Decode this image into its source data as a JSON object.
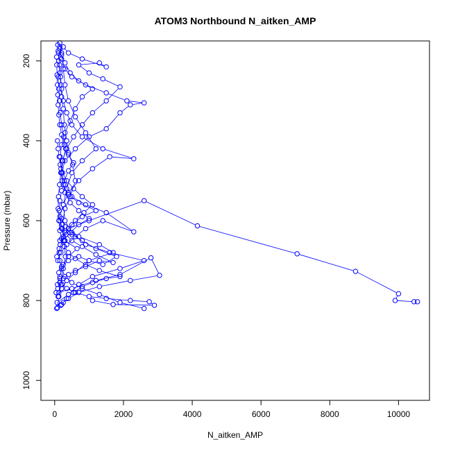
{
  "chart_data": {
    "type": "line",
    "title": "ATOM3 Northbound N_aitken_AMP",
    "xlabel": "N_aitken_AMP",
    "ylabel": "Pressure (mbar)",
    "xlim": [
      -400,
      10900
    ],
    "ylim": [
      1050,
      150
    ],
    "x_ticks": [
      0,
      2000,
      4000,
      6000,
      8000,
      10000
    ],
    "y_ticks": [
      200,
      400,
      600,
      800,
      1000
    ],
    "x_tick_labels": [
      "0",
      "2000",
      "4000",
      "6000",
      "8000",
      "10000"
    ],
    "y_tick_labels": [
      "200",
      "400",
      "600",
      "800",
      "1000"
    ],
    "color": "#0000ff",
    "series": [
      {
        "points": [
          [
            60,
            820
          ],
          [
            80,
            818
          ],
          [
            120,
            790
          ],
          [
            180,
            760
          ],
          [
            250,
            720
          ],
          [
            310,
            690
          ],
          [
            280,
            650
          ],
          [
            220,
            610
          ],
          [
            300,
            570
          ],
          [
            450,
            540
          ],
          [
            600,
            500
          ],
          [
            520,
            460
          ],
          [
            400,
            430
          ],
          [
            350,
            400
          ],
          [
            280,
            360
          ],
          [
            250,
            320
          ],
          [
            200,
            290
          ],
          [
            180,
            260
          ],
          [
            150,
            230
          ],
          [
            120,
            200
          ],
          [
            100,
            175
          ],
          [
            90,
            160
          ]
        ]
      },
      {
        "points": [
          [
            70,
            805
          ],
          [
            400,
            785
          ],
          [
            700,
            760
          ],
          [
            1100,
            740
          ],
          [
            1900,
            720
          ],
          [
            2600,
            700
          ],
          [
            1600,
            680
          ],
          [
            900,
            660
          ],
          [
            500,
            630
          ],
          [
            300,
            600
          ],
          [
            250,
            560
          ],
          [
            350,
            520
          ],
          [
            500,
            480
          ],
          [
            800,
            450
          ],
          [
            1200,
            420
          ],
          [
            900,
            380
          ],
          [
            600,
            340
          ],
          [
            400,
            300
          ],
          [
            300,
            260
          ],
          [
            250,
            220
          ],
          [
            200,
            180
          ],
          [
            150,
            155
          ]
        ]
      },
      {
        "points": [
          [
            100,
            790
          ],
          [
            200,
            770
          ],
          [
            350,
            750
          ],
          [
            600,
            730
          ],
          [
            1000,
            700
          ],
          [
            1700,
            680
          ],
          [
            1300,
            660
          ],
          [
            700,
            640
          ],
          [
            400,
            620
          ],
          [
            1000,
            600
          ],
          [
            2600,
            550
          ],
          [
            4150,
            613
          ],
          [
            7050,
            683
          ],
          [
            8750,
            727
          ],
          [
            10000,
            783
          ],
          [
            9900,
            800
          ],
          [
            10450,
            803
          ],
          [
            10550,
            803
          ]
        ]
      },
      {
        "points": [
          [
            80,
            760
          ],
          [
            150,
            740
          ],
          [
            250,
            710
          ],
          [
            400,
            690
          ],
          [
            650,
            670
          ],
          [
            300,
            650
          ],
          [
            200,
            620
          ],
          [
            150,
            590
          ],
          [
            250,
            560
          ],
          [
            400,
            530
          ],
          [
            700,
            500
          ],
          [
            1100,
            470
          ],
          [
            1600,
            440
          ],
          [
            2300,
            445
          ],
          [
            1400,
            420
          ],
          [
            800,
            390
          ],
          [
            500,
            360
          ],
          [
            350,
            330
          ],
          [
            250,
            300
          ],
          [
            200,
            270
          ],
          [
            170,
            240
          ],
          [
            140,
            210
          ],
          [
            110,
            180
          ]
        ]
      },
      {
        "points": [
          [
            120,
            780
          ],
          [
            500,
            770
          ],
          [
            1200,
            750
          ],
          [
            1900,
            735
          ],
          [
            2800,
            693
          ],
          [
            3050,
            737
          ],
          [
            2200,
            750
          ],
          [
            1300,
            765
          ],
          [
            700,
            780
          ],
          [
            400,
            795
          ],
          [
            250,
            805
          ],
          [
            180,
            812
          ]
        ]
      },
      {
        "points": [
          [
            90,
            700
          ],
          [
            180,
            680
          ],
          [
            350,
            660
          ],
          [
            600,
            640
          ],
          [
            900,
            620
          ],
          [
            1400,
            600
          ],
          [
            2300,
            628
          ],
          [
            1500,
            580
          ],
          [
            900,
            560
          ],
          [
            500,
            540
          ],
          [
            300,
            510
          ],
          [
            200,
            480
          ],
          [
            300,
            450
          ],
          [
            600,
            420
          ],
          [
            1000,
            390
          ],
          [
            1500,
            370
          ],
          [
            1900,
            330
          ],
          [
            2200,
            310
          ],
          [
            2600,
            305
          ],
          [
            2100,
            300
          ],
          [
            1500,
            280
          ],
          [
            900,
            260
          ],
          [
            500,
            240
          ],
          [
            300,
            220
          ],
          [
            200,
            195
          ],
          [
            150,
            170
          ]
        ]
      },
      {
        "points": [
          [
            150,
            650
          ],
          [
            300,
            630
          ],
          [
            500,
            610
          ],
          [
            800,
            590
          ],
          [
            1200,
            575
          ],
          [
            700,
            555
          ],
          [
            400,
            535
          ],
          [
            250,
            510
          ],
          [
            180,
            480
          ],
          [
            220,
            450
          ],
          [
            350,
            420
          ],
          [
            550,
            390
          ],
          [
            800,
            360
          ],
          [
            1100,
            330
          ],
          [
            1500,
            300
          ],
          [
            1900,
            265
          ],
          [
            1400,
            245
          ],
          [
            1000,
            230
          ],
          [
            700,
            210
          ],
          [
            1300,
            205
          ],
          [
            1500,
            215
          ],
          [
            800,
            195
          ],
          [
            400,
            180
          ],
          [
            250,
            165
          ]
        ]
      },
      {
        "points": [
          [
            60,
            690
          ],
          [
            130,
            670
          ],
          [
            250,
            650
          ],
          [
            450,
            630
          ],
          [
            700,
            610
          ],
          [
            1000,
            595
          ],
          [
            700,
            575
          ],
          [
            450,
            555
          ],
          [
            300,
            530
          ],
          [
            220,
            500
          ],
          [
            180,
            470
          ],
          [
            160,
            440
          ],
          [
            200,
            410
          ],
          [
            300,
            380
          ],
          [
            450,
            350
          ],
          [
            600,
            320
          ],
          [
            800,
            290
          ],
          [
            1100,
            270
          ],
          [
            700,
            250
          ],
          [
            450,
            230
          ],
          [
            300,
            205
          ],
          [
            200,
            185
          ],
          [
            150,
            165
          ]
        ]
      },
      {
        "points": [
          [
            200,
            810
          ],
          [
            350,
            795
          ],
          [
            550,
            780
          ],
          [
            800,
            765
          ],
          [
            1100,
            755
          ],
          [
            1500,
            745
          ],
          [
            1900,
            740
          ],
          [
            1300,
            725
          ],
          [
            900,
            710
          ],
          [
            600,
            695
          ],
          [
            400,
            680
          ],
          [
            280,
            665
          ],
          [
            200,
            645
          ],
          [
            150,
            625
          ],
          [
            120,
            600
          ],
          [
            100,
            570
          ],
          [
            110,
            540
          ],
          [
            140,
            510
          ],
          [
            180,
            480
          ],
          [
            240,
            450
          ],
          [
            320,
            420
          ],
          [
            260,
            390
          ],
          [
            200,
            360
          ],
          [
            160,
            330
          ],
          [
            140,
            300
          ],
          [
            120,
            270
          ],
          [
            100,
            240
          ]
        ]
      },
      {
        "points": [
          [
            1100,
            800
          ],
          [
            1700,
            810
          ],
          [
            2900,
            812
          ],
          [
            2750,
            803
          ],
          [
            2200,
            800
          ],
          [
            1500,
            795
          ],
          [
            1000,
            790
          ],
          [
            600,
            780
          ],
          [
            350,
            770
          ],
          [
            220,
            760
          ],
          [
            150,
            745
          ],
          [
            120,
            730
          ],
          [
            200,
            715
          ],
          [
            400,
            700
          ],
          [
            700,
            690
          ],
          [
            1000,
            700
          ],
          [
            1400,
            710
          ],
          [
            1800,
            690
          ],
          [
            1200,
            670
          ],
          [
            800,
            650
          ],
          [
            500,
            635
          ],
          [
            300,
            615
          ],
          [
            200,
            595
          ]
        ]
      },
      {
        "points": [
          [
            2600,
            820
          ],
          [
            1900,
            805
          ],
          [
            1300,
            785
          ],
          [
            800,
            770
          ],
          [
            500,
            755
          ],
          [
            300,
            740
          ],
          [
            200,
            720
          ],
          [
            150,
            700
          ],
          [
            130,
            680
          ],
          [
            160,
            660
          ],
          [
            250,
            640
          ],
          [
            400,
            620
          ],
          [
            600,
            600
          ],
          [
            850,
            580
          ],
          [
            1100,
            560
          ],
          [
            800,
            540
          ],
          [
            550,
            520
          ],
          [
            350,
            500
          ],
          [
            230,
            480
          ],
          [
            160,
            460
          ],
          [
            130,
            440
          ],
          [
            100,
            420
          ],
          [
            80,
            400
          ]
        ]
      },
      {
        "points": [
          [
            40,
            780
          ],
          [
            90,
            770
          ],
          [
            150,
            755
          ],
          [
            250,
            745
          ],
          [
            400,
            735
          ],
          [
            600,
            725
          ],
          [
            900,
            715
          ],
          [
            1300,
            700
          ],
          [
            1700,
            705
          ],
          [
            1200,
            685
          ],
          [
            800,
            665
          ],
          [
            500,
            650
          ],
          [
            330,
            635
          ],
          [
            220,
            620
          ],
          [
            160,
            600
          ],
          [
            130,
            575
          ],
          [
            150,
            550
          ],
          [
            200,
            525
          ],
          [
            280,
            500
          ],
          [
            400,
            475
          ],
          [
            550,
            455
          ],
          [
            400,
            435
          ],
          [
            280,
            410
          ],
          [
            200,
            385
          ],
          [
            150,
            360
          ],
          [
            120,
            335
          ],
          [
            100,
            310
          ],
          [
            90,
            285
          ],
          [
            80,
            260
          ],
          [
            70,
            235
          ],
          [
            60,
            210
          ],
          [
            55,
            190
          ]
        ]
      }
    ]
  }
}
